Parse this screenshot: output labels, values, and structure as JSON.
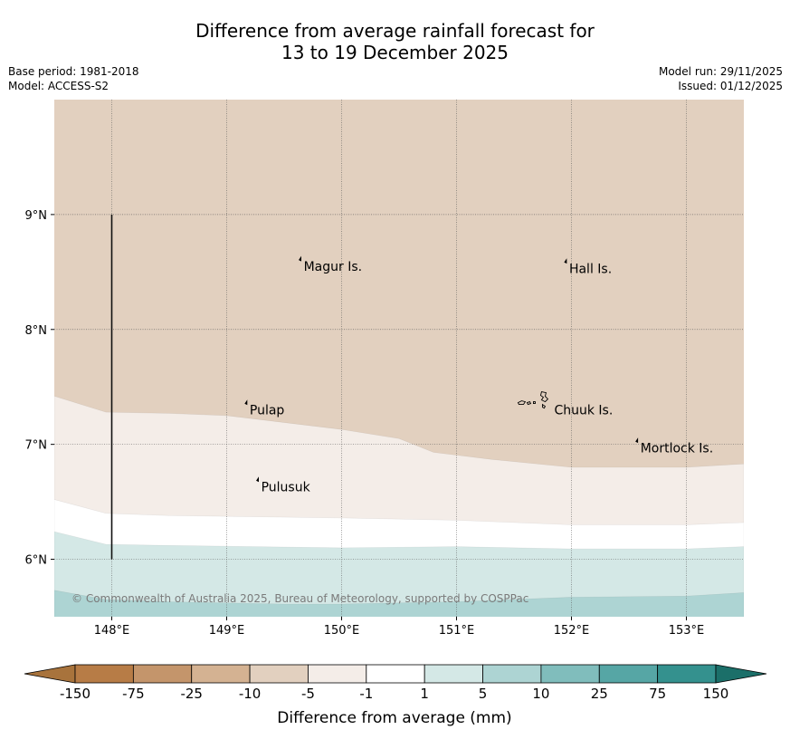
{
  "title": {
    "line1": "Difference from average rainfall forecast for",
    "line2": "13 to 19 December 2025"
  },
  "meta": {
    "base_period": "Base period: 1981-2018",
    "model": "Model: ACCESS-S2",
    "model_run": "Model run: 29/11/2025",
    "issued": "Issued: 01/12/2025"
  },
  "map": {
    "lat_range": [
      5.5,
      10.0
    ],
    "lon_range": [
      147.5,
      153.5
    ],
    "lat_ticks": [
      {
        "value": 9,
        "label": "9°N"
      },
      {
        "value": 8,
        "label": "8°N"
      },
      {
        "value": 7,
        "label": "7°N"
      },
      {
        "value": 6,
        "label": "6°N"
      }
    ],
    "lon_ticks": [
      {
        "value": 148,
        "label": "148°E"
      },
      {
        "value": 149,
        "label": "149°E"
      },
      {
        "value": 150,
        "label": "150°E"
      },
      {
        "value": 151,
        "label": "151°E"
      },
      {
        "value": 152,
        "label": "152°E"
      },
      {
        "value": 153,
        "label": "153°E"
      }
    ],
    "places": [
      {
        "name": "Magur Is.",
        "lon": 149.67,
        "lat": 8.55
      },
      {
        "name": "Hall Is.",
        "lon": 151.98,
        "lat": 8.53
      },
      {
        "name": "Pulap",
        "lon": 149.2,
        "lat": 7.3
      },
      {
        "name": "Chuuk Is.",
        "lon": 151.85,
        "lat": 7.3
      },
      {
        "name": "Mortlock Is.",
        "lon": 152.6,
        "lat": 6.97
      },
      {
        "name": "Pulusuk",
        "lon": 149.3,
        "lat": 6.63
      }
    ],
    "copyright": "© Commonwealth of Australia 2025, Bureau of Meteorology, supported by COSPPac",
    "bands": [
      {
        "class": "-10 to -5",
        "color": "#e2d0bf"
      },
      {
        "class": "-5 to -1",
        "color": "#f4ede8"
      },
      {
        "class": "-1 to 1",
        "color": "#ffffff"
      },
      {
        "class": "1 to 5",
        "color": "#d4e8e6"
      },
      {
        "class": "5 to 10",
        "color": "#add4d3"
      }
    ],
    "boundaries": {
      "top_edges": [
        [
          [
            147.5,
            7.42
          ],
          [
            147.95,
            7.28
          ],
          [
            148.5,
            7.27
          ],
          [
            149.0,
            7.25
          ],
          [
            150.0,
            7.13
          ],
          [
            150.5,
            7.05
          ],
          [
            150.8,
            6.93
          ],
          [
            151.3,
            6.87
          ],
          [
            152.0,
            6.8
          ],
          [
            153.0,
            6.8
          ],
          [
            153.5,
            6.83
          ]
        ],
        [
          [
            147.5,
            6.52
          ],
          [
            147.95,
            6.4
          ],
          [
            148.5,
            6.38
          ],
          [
            150.0,
            6.36
          ],
          [
            151.0,
            6.34
          ],
          [
            152.0,
            6.3
          ],
          [
            153.0,
            6.3
          ],
          [
            153.5,
            6.32
          ]
        ],
        [
          [
            147.5,
            6.24
          ],
          [
            147.95,
            6.13
          ],
          [
            148.5,
            6.12
          ],
          [
            150.0,
            6.1
          ],
          [
            151.0,
            6.11
          ],
          [
            152.0,
            6.09
          ],
          [
            153.0,
            6.09
          ],
          [
            153.5,
            6.11
          ]
        ],
        [
          [
            147.5,
            5.73
          ],
          [
            147.95,
            5.65
          ],
          [
            148.5,
            5.63
          ],
          [
            149.5,
            5.61
          ],
          [
            150.0,
            5.61
          ],
          [
            151.0,
            5.63
          ],
          [
            152.0,
            5.67
          ],
          [
            153.0,
            5.68
          ],
          [
            153.5,
            5.71
          ]
        ]
      ]
    },
    "meridian_line": {
      "lon": 148.0,
      "lat_from": 6.0,
      "lat_to": 9.0
    }
  },
  "legend": {
    "colors": [
      "#a8733c",
      "#b77c46",
      "#c4956b",
      "#d4b292",
      "#e2d0bf",
      "#f4ede8",
      "#ffffff",
      "#d4e8e6",
      "#add4d3",
      "#80bdbc",
      "#56a6a5",
      "#34918e",
      "#1b6f69"
    ],
    "tick_labels": [
      "-150",
      "-75",
      "-25",
      "-10",
      "-5",
      "-1",
      "1",
      "5",
      "10",
      "25",
      "75",
      "150"
    ],
    "label": "Difference from average (mm)"
  }
}
